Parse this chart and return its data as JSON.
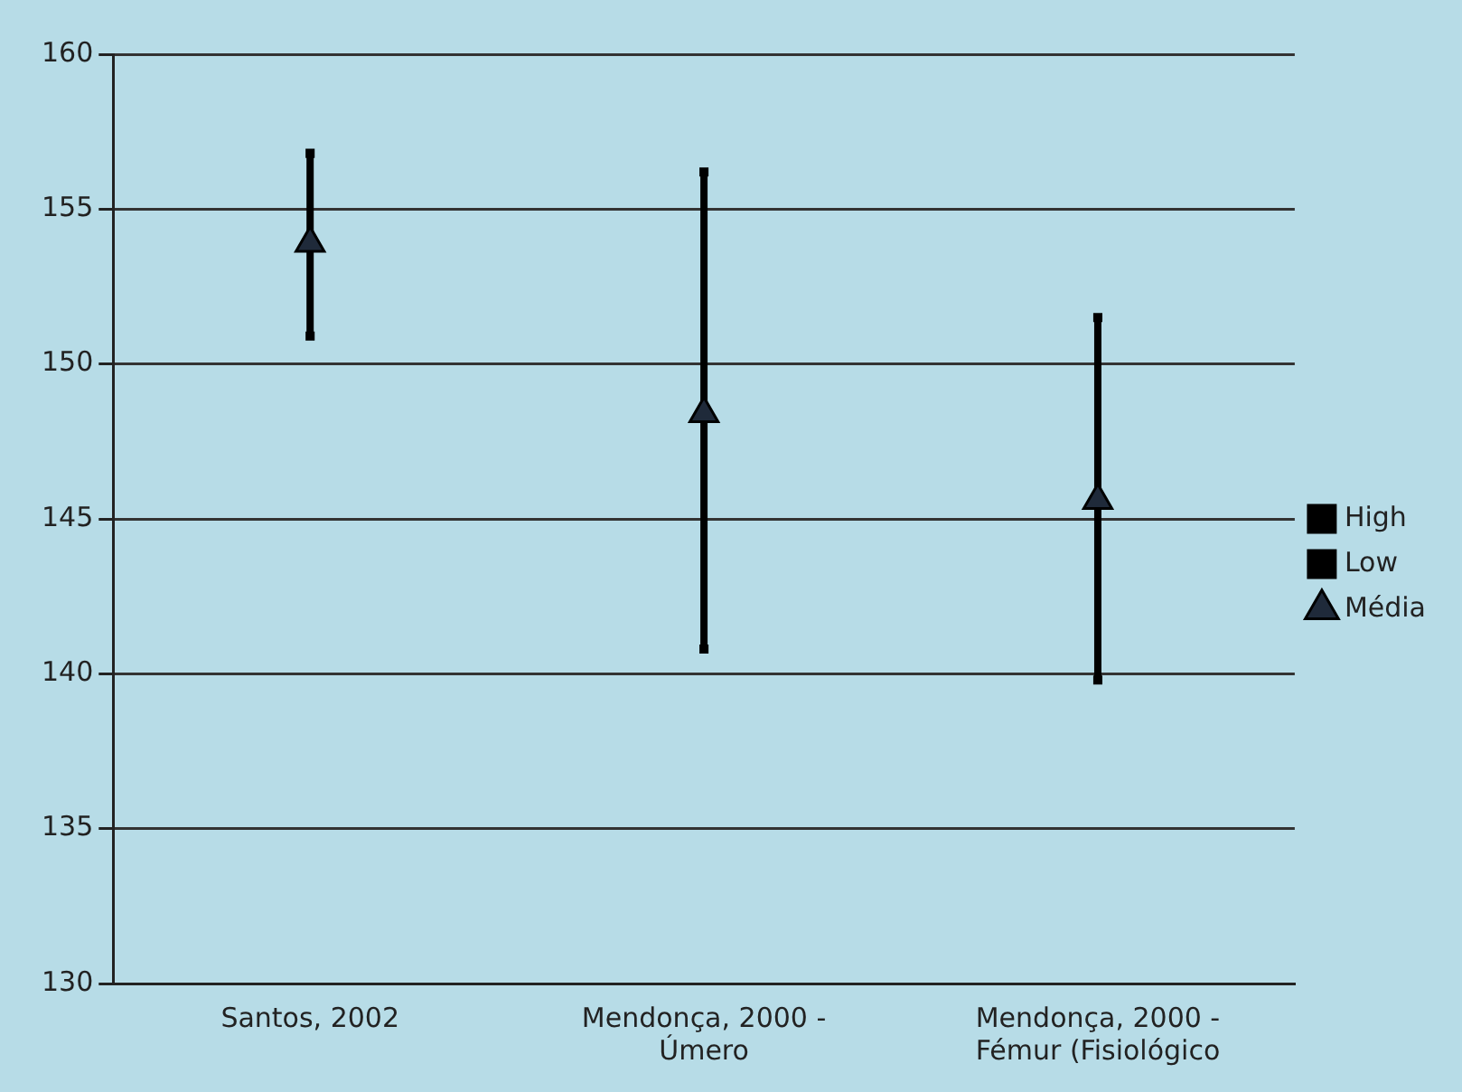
{
  "chart_data": {
    "type": "scatter",
    "categories": [
      "Santos, 2002",
      "Mendonça, 2000 - Úmero",
      "Mendonça, 2000 - Fémur (Fisiológico"
    ],
    "series": [
      {
        "name": "High",
        "marker": "square",
        "color": "#000000",
        "values": [
          156.8,
          156.2,
          151.5
        ]
      },
      {
        "name": "Low",
        "marker": "square",
        "color": "#000000",
        "values": [
          150.9,
          140.8,
          139.8
        ]
      },
      {
        "name": "Média",
        "marker": "triangle",
        "color": "#1f2a3a",
        "values": [
          153.9,
          148.4,
          145.6
        ]
      }
    ],
    "ylim": [
      130,
      160
    ],
    "yticks": [
      130,
      135,
      140,
      145,
      150,
      155,
      160
    ],
    "grid": "y",
    "legend": "right"
  }
}
